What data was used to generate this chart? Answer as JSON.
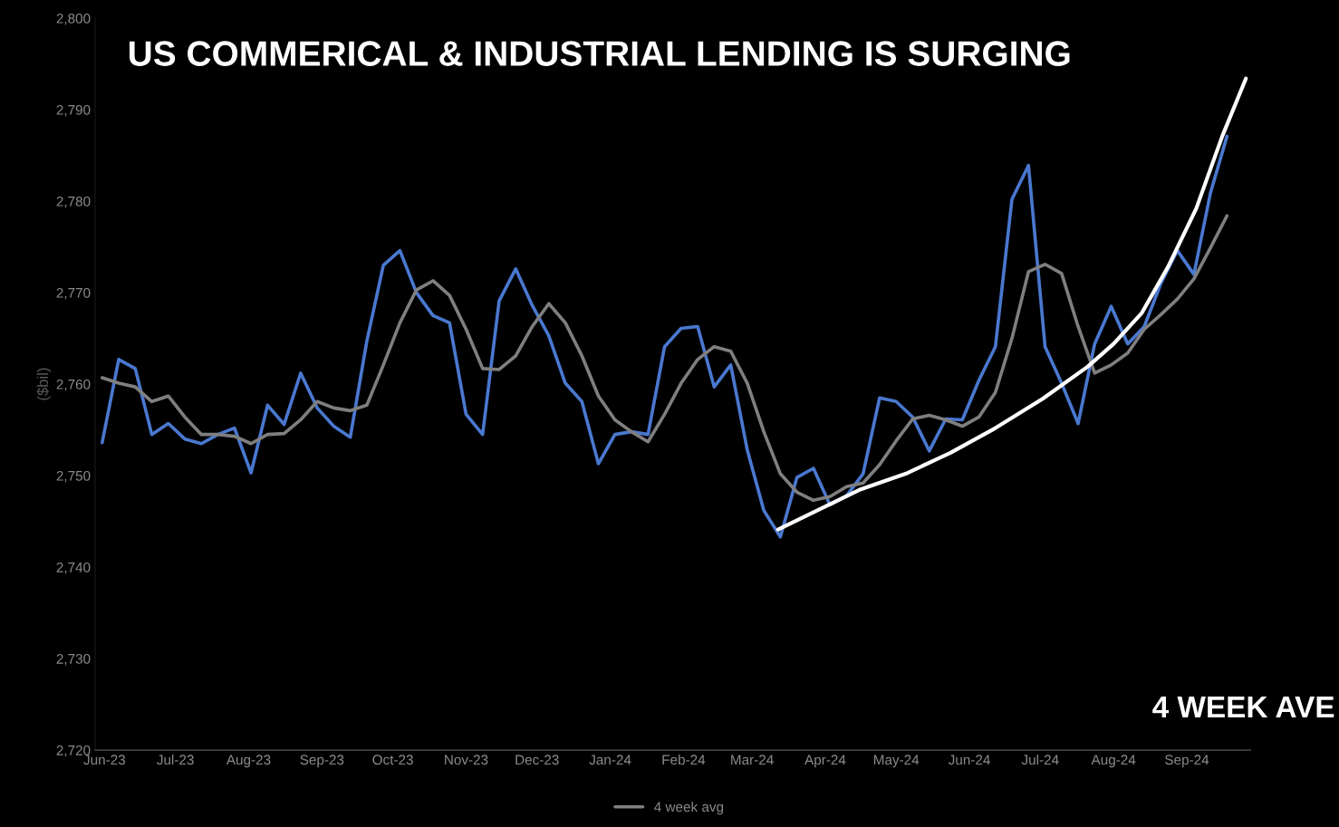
{
  "chart_data": {
    "type": "line",
    "title": "US COMMERICAL & INDUSTRIAL LENDING IS SURGING",
    "ylabel": "($bil)",
    "x": [
      "2023-05-31",
      "2023-06-07",
      "2023-06-14",
      "2023-06-21",
      "2023-06-28",
      "2023-07-05",
      "2023-07-12",
      "2023-07-19",
      "2023-07-26",
      "2023-08-02",
      "2023-08-09",
      "2023-08-16",
      "2023-08-23",
      "2023-08-30",
      "2023-09-06",
      "2023-09-13",
      "2023-09-20",
      "2023-09-27",
      "2023-10-04",
      "2023-10-11",
      "2023-10-18",
      "2023-10-25",
      "2023-11-01",
      "2023-11-08",
      "2023-11-15",
      "2023-11-22",
      "2023-11-29",
      "2023-12-06",
      "2023-12-13",
      "2023-12-20",
      "2023-12-27",
      "2024-01-03",
      "2024-01-10",
      "2024-01-17",
      "2024-01-24",
      "2024-01-31",
      "2024-02-07",
      "2024-02-14",
      "2024-02-21",
      "2024-02-28",
      "2024-03-06",
      "2024-03-13",
      "2024-03-20",
      "2024-03-27",
      "2024-04-03",
      "2024-04-10",
      "2024-04-17",
      "2024-04-24",
      "2024-05-01",
      "2024-05-08",
      "2024-05-15",
      "2024-05-22",
      "2024-05-29",
      "2024-06-05",
      "2024-06-12",
      "2024-06-19",
      "2024-06-26",
      "2024-07-03",
      "2024-07-10",
      "2024-07-17",
      "2024-07-24",
      "2024-07-31",
      "2024-08-07",
      "2024-08-14",
      "2024-08-21",
      "2024-08-28",
      "2024-09-04",
      "2024-09-11",
      "2024-09-18"
    ],
    "series": [
      {
        "color": "#4a78d0",
        "values": [
          2753.6,
          2762.7,
          2761.7,
          2754.5,
          2755.7,
          2754.0,
          2753.5,
          2754.5,
          2755.2,
          2750.3,
          2757.7,
          2755.6,
          2761.2,
          2757.4,
          2755.4,
          2754.2,
          2764.7,
          2773.0,
          2774.6,
          2770.0,
          2767.5,
          2766.7,
          2756.7,
          2754.5,
          2769.1,
          2772.6,
          2768.6,
          2765.3,
          2760.1,
          2758.1,
          2751.3,
          2754.5,
          2754.8,
          2754.5,
          2764.1,
          2766.1,
          2766.3,
          2759.7,
          2762.1,
          2752.8,
          2746.2,
          2743.3,
          2749.8,
          2750.8,
          2746.8,
          2747.8,
          2750.2,
          2758.5,
          2758.1,
          2756.4,
          2752.7,
          2756.2,
          2756.1,
          2760.4,
          2764.1,
          2780.2,
          2783.9,
          2764.1,
          2760.1,
          2755.7,
          2764.4,
          2768.5,
          2764.4,
          2766.3,
          2771.0,
          2774.6,
          2772.0,
          2780.9,
          2787.1
        ]
      },
      {
        "name": "4 week avg",
        "color": "#7f7f7f",
        "values": [
          2760.7,
          2760.1,
          2759.7,
          2758.1,
          2758.7,
          2756.4,
          2754.5,
          2754.5,
          2754.3,
          2753.5,
          2754.5,
          2754.6,
          2756.1,
          2758.1,
          2757.4,
          2757.1,
          2757.7,
          2762.1,
          2766.7,
          2770.3,
          2771.3,
          2769.7,
          2766.0,
          2761.7,
          2761.6,
          2763.1,
          2766.3,
          2768.8,
          2766.7,
          2763.1,
          2758.7,
          2756.1,
          2754.8,
          2753.7,
          2756.7,
          2760.1,
          2762.7,
          2764.1,
          2763.6,
          2760.1,
          2754.8,
          2750.2,
          2748.2,
          2747.3,
          2747.7,
          2748.8,
          2749.2,
          2751.2,
          2753.8,
          2756.2,
          2756.6,
          2756.1,
          2755.4,
          2756.4,
          2759.1,
          2765.0,
          2772.3,
          2773.1,
          2772.1,
          2766.3,
          2761.2,
          2762.1,
          2763.4,
          2766.0,
          2767.6,
          2769.3,
          2771.5,
          2774.9,
          2778.4
        ]
      },
      {
        "type": "line",
        "color": "#ffffff",
        "x": [
          "2024-03-12",
          "2024-04-16",
          "2024-05-05",
          "2024-05-24",
          "2024-06-12",
          "2024-07-02",
          "2024-07-21",
          "2024-08-01",
          "2024-08-13",
          "2024-08-24",
          "2024-09-05",
          "2024-09-16",
          "2024-09-26"
        ],
        "values": [
          2744.1,
          2748.5,
          2750.2,
          2752.5,
          2755.2,
          2758.4,
          2761.9,
          2764.4,
          2767.8,
          2772.8,
          2779.2,
          2787.1,
          2793.4
        ]
      }
    ],
    "xlim": [
      "2023-05-28",
      "2024-09-28"
    ],
    "xticks": [
      {
        "value": "2023-06-01",
        "label": "Jun-23"
      },
      {
        "value": "2023-07-01",
        "label": "Jul-23"
      },
      {
        "value": "2023-08-01",
        "label": "Aug-23"
      },
      {
        "value": "2023-09-01",
        "label": "Sep-23"
      },
      {
        "value": "2023-10-01",
        "label": "Oct-23"
      },
      {
        "value": "2023-11-01",
        "label": "Nov-23"
      },
      {
        "value": "2023-12-01",
        "label": "Dec-23"
      },
      {
        "value": "2024-01-01",
        "label": "Jan-24"
      },
      {
        "value": "2024-02-01",
        "label": "Feb-24"
      },
      {
        "value": "2024-03-01",
        "label": "Mar-24"
      },
      {
        "value": "2024-04-01",
        "label": "Apr-24"
      },
      {
        "value": "2024-05-01",
        "label": "May-24"
      },
      {
        "value": "2024-06-01",
        "label": "Jun-24"
      },
      {
        "value": "2024-07-01",
        "label": "Jul-24"
      },
      {
        "value": "2024-08-01",
        "label": "Aug-24"
      },
      {
        "value": "2024-09-01",
        "label": "Sep-24"
      }
    ],
    "ylim": [
      2720,
      2800
    ],
    "yticks": [
      {
        "value": 2720,
        "label": "2,720"
      },
      {
        "value": 2730,
        "label": "2,730"
      },
      {
        "value": 2740,
        "label": "2,740"
      },
      {
        "value": 2750,
        "label": "2,750"
      },
      {
        "value": 2760,
        "label": "2,760"
      },
      {
        "value": 2770,
        "label": "2,770"
      },
      {
        "value": 2780,
        "label": "2,780"
      },
      {
        "value": 2790,
        "label": "2,790"
      },
      {
        "value": 2800,
        "label": "2,800"
      }
    ],
    "annotations": [
      "4 WEEK AVE"
    ],
    "legend": "bottom"
  }
}
